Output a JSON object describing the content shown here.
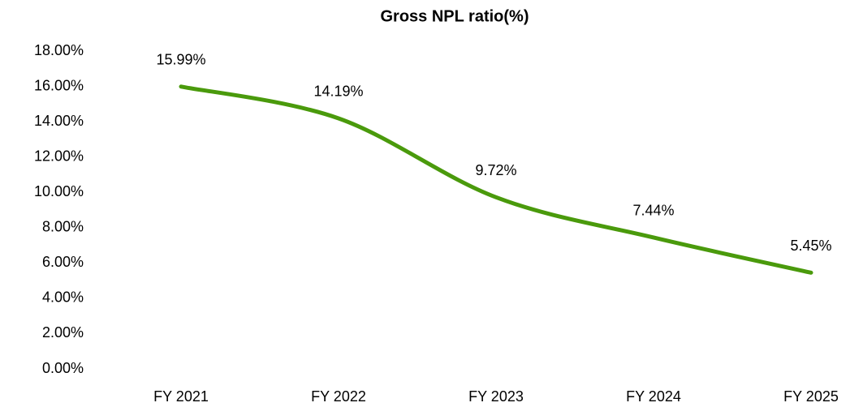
{
  "chart_data": {
    "type": "line",
    "title": "Gross NPL ratio(%)",
    "categories": [
      "FY 2021",
      "FY 2022",
      "FY 2023",
      "FY 2024",
      "FY 2025"
    ],
    "values": [
      15.99,
      14.19,
      9.72,
      7.44,
      5.45
    ],
    "value_labels": [
      "15.99%",
      "14.19%",
      "9.72%",
      "7.44%",
      "5.45%"
    ],
    "color": "#4a9a0c",
    "smooth": true,
    "grid": false,
    "ylim": [
      0,
      18
    ],
    "yticks": [
      {
        "value": 0,
        "label": "0.00%"
      },
      {
        "value": 2,
        "label": "2.00%"
      },
      {
        "value": 4,
        "label": "4.00%"
      },
      {
        "value": 6,
        "label": "6.00%"
      },
      {
        "value": 8,
        "label": "8.00%"
      },
      {
        "value": 10,
        "label": "10.00%"
      },
      {
        "value": 12,
        "label": "12.00%"
      },
      {
        "value": 14,
        "label": "14.00%"
      },
      {
        "value": 16,
        "label": "16.00%"
      },
      {
        "value": 18,
        "label": "18.00%"
      }
    ]
  }
}
